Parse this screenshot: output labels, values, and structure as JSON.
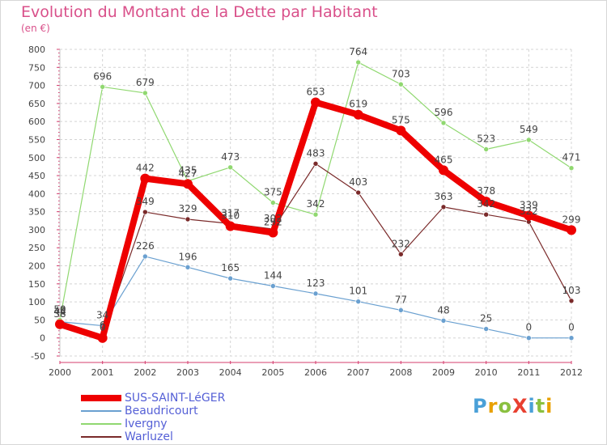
{
  "title": "Evolution du Montant de la Dette par Habitant",
  "subtitle": "(en €)",
  "logo": {
    "text": "ProXiti",
    "letter_colors": [
      "#4aa0d8",
      "#e8a000",
      "#8ac040",
      "#e84030",
      "#4aa0d8",
      "#8ac040",
      "#e8a000"
    ]
  },
  "chart_data": {
    "type": "line",
    "title": "Evolution du Montant de la Dette par Habitant",
    "ylabel": "(en €)",
    "xlabel": "",
    "x": [
      "2000",
      "2001",
      "2002",
      "2003",
      "2004",
      "2005",
      "2006",
      "2007",
      "2008",
      "2009",
      "2010",
      "2011",
      "2012"
    ],
    "ylim": [
      -50,
      800
    ],
    "yticks": [
      -50,
      0,
      50,
      100,
      150,
      200,
      250,
      300,
      350,
      400,
      450,
      500,
      550,
      600,
      650,
      700,
      750,
      800
    ],
    "grid": true,
    "legend_position": "bottom-left",
    "series": [
      {
        "name": "SUS-SAINT-LéGER",
        "color": "#ee0000",
        "values": [
          38,
          0,
          442,
          427,
          310,
          292,
          653,
          619,
          575,
          465,
          378,
          339,
          299
        ]
      },
      {
        "name": "Beaudricourt",
        "color": "#6aa0d0",
        "values": [
          45,
          34,
          226,
          196,
          165,
          144,
          123,
          101,
          77,
          48,
          25,
          0,
          0
        ]
      },
      {
        "name": "Ivergny",
        "color": "#90d870",
        "values": [
          50,
          696,
          679,
          435,
          473,
          375,
          342,
          764,
          703,
          596,
          523,
          549,
          471
        ]
      },
      {
        "name": "Warluzel",
        "color": "#7a2a2a",
        "values": [
          44,
          6,
          349,
          329,
          317,
          302,
          483,
          403,
          232,
          363,
          342,
          322,
          103
        ]
      }
    ]
  }
}
